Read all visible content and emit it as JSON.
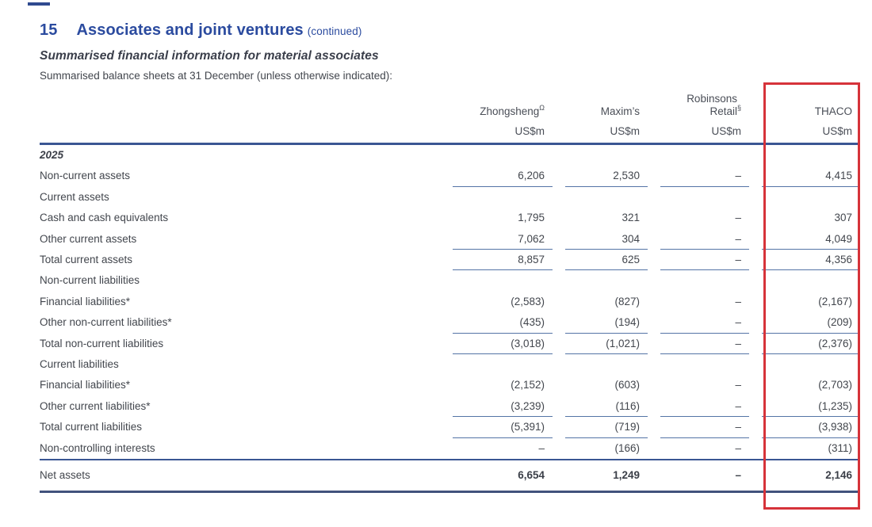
{
  "heading": {
    "number": "15",
    "title": "Associates and joint ventures",
    "continued": "(continued)",
    "subtitle": "Summarised financial information for material associates",
    "intro": "Summarised balance sheets at 31 December (unless otherwise indicated):"
  },
  "table": {
    "columns": [
      {
        "name": "Zhongsheng",
        "sup": "Ω",
        "unit": "US$m"
      },
      {
        "name": "Maxim’s",
        "sup": "",
        "unit": "US$m"
      },
      {
        "name": "Robinsons Retail",
        "sup": "§",
        "unit": "US$m"
      },
      {
        "name": "THACO",
        "sup": "",
        "unit": "US$m"
      }
    ],
    "rows": [
      {
        "label": "2025",
        "year": true,
        "values": [],
        "underline": false
      },
      {
        "label": "Non-current assets",
        "values": [
          "6,206",
          "2,530",
          "–",
          "4,415"
        ],
        "underline": true
      },
      {
        "label": "Current assets",
        "values": [],
        "underline": false
      },
      {
        "label": "Cash and cash equivalents",
        "values": [
          "1,795",
          "321",
          "–",
          "307"
        ],
        "underline": false
      },
      {
        "label": "Other current assets",
        "values": [
          "7,062",
          "304",
          "–",
          "4,049"
        ],
        "underline": true
      },
      {
        "label": "Total current assets",
        "values": [
          "8,857",
          "625",
          "–",
          "4,356"
        ],
        "underline": true
      },
      {
        "label": "Non-current liabilities",
        "values": [],
        "underline": false
      },
      {
        "label": "Financial liabilities*",
        "values": [
          "(2,583)",
          "(827)",
          "–",
          "(2,167)"
        ],
        "underline": false
      },
      {
        "label": "Other non-current liabilities*",
        "values": [
          "(435)",
          "(194)",
          "–",
          "(209)"
        ],
        "underline": true
      },
      {
        "label": "Total non-current liabilities",
        "values": [
          "(3,018)",
          "(1,021)",
          "–",
          "(2,376)"
        ],
        "underline": true
      },
      {
        "label": "Current liabilities",
        "values": [],
        "underline": false
      },
      {
        "label": "Financial liabilities*",
        "values": [
          "(2,152)",
          "(603)",
          "–",
          "(2,703)"
        ],
        "underline": false
      },
      {
        "label": "Other current liabilities*",
        "values": [
          "(3,239)",
          "(116)",
          "–",
          "(1,235)"
        ],
        "underline": true
      },
      {
        "label": "Total current liabilities",
        "values": [
          "(5,391)",
          "(719)",
          "–",
          "(3,938)"
        ],
        "underline": true
      },
      {
        "label": "Non-controlling interests",
        "values": [
          "–",
          "(166)",
          "–",
          "(311)"
        ],
        "underline": false
      }
    ],
    "total_row": {
      "label": "Net assets",
      "values": [
        "6,654",
        "1,249",
        "–",
        "2,146"
      ]
    }
  },
  "highlight": {
    "target": "THACO column",
    "color": "#d6333a"
  },
  "colors": {
    "heading_blue": "#2b4b9f",
    "rule_navy": "#3a5693",
    "cell_underline": "#5474a6",
    "body_text": "#42464d",
    "highlight_red": "#d6333a"
  }
}
